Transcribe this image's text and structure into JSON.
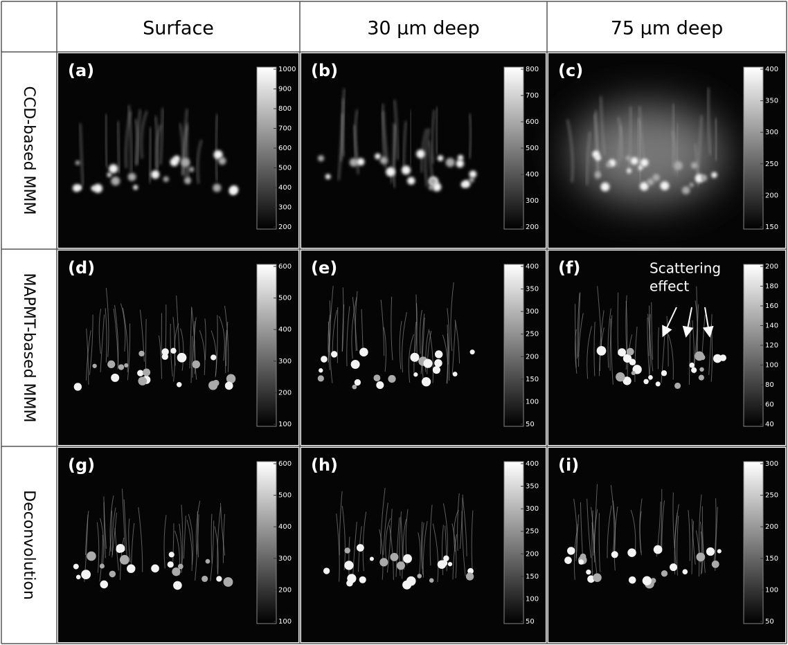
{
  "header": {
    "columns": [
      "Surface",
      "30 μm deep",
      "75 μm deep"
    ]
  },
  "rows": [
    "CCD-based MMM",
    "MAPMT-based MMM",
    "Deconvolution"
  ],
  "panels": [
    [
      {
        "label": "(a)",
        "colorbar": [
          200,
          300,
          400,
          500,
          600,
          700,
          800,
          900,
          1000
        ]
      },
      {
        "label": "(b)",
        "colorbar": [
          200,
          300,
          400,
          500,
          600,
          700,
          800
        ]
      },
      {
        "label": "(c)",
        "colorbar": [
          150,
          200,
          250,
          300,
          350,
          400
        ]
      }
    ],
    [
      {
        "label": "(d)",
        "colorbar": [
          100,
          200,
          300,
          400,
          500,
          600
        ]
      },
      {
        "label": "(e)",
        "colorbar": [
          50,
          100,
          150,
          200,
          250,
          300,
          350,
          400
        ]
      },
      {
        "label": "(f)",
        "colorbar": [
          40,
          60,
          80,
          100,
          120,
          140,
          160,
          180,
          200
        ],
        "annotation": [
          "Scattering",
          "effect"
        ]
      }
    ],
    [
      {
        "label": "(g)",
        "colorbar": [
          100,
          200,
          300,
          400,
          500,
          600
        ]
      },
      {
        "label": "(h)",
        "colorbar": [
          50,
          100,
          150,
          200,
          250,
          300,
          350,
          400
        ]
      },
      {
        "label": "(i)",
        "colorbar": [
          50,
          100,
          150,
          200,
          250,
          300
        ]
      }
    ]
  ]
}
